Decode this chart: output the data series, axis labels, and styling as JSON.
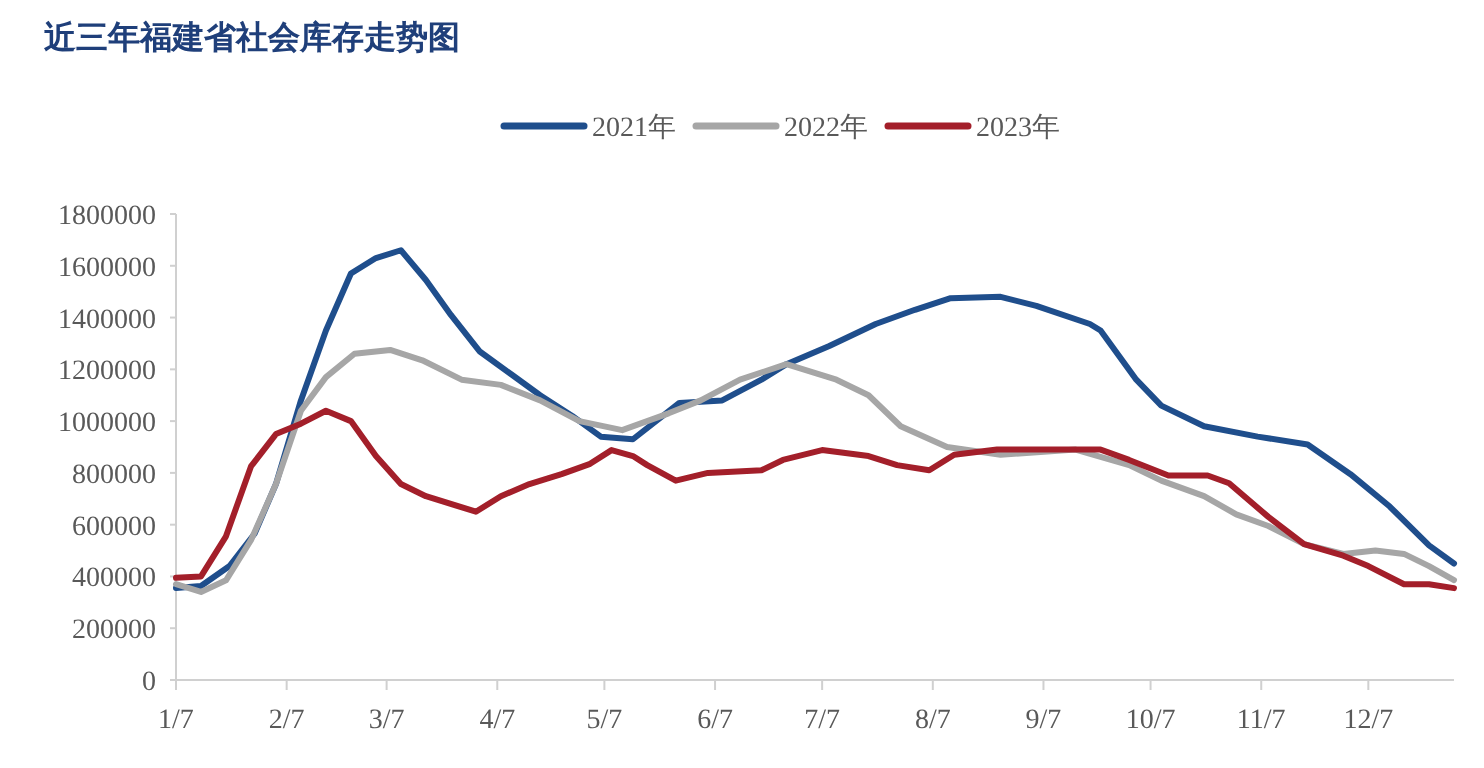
{
  "chart_data": {
    "type": "line",
    "title": "近三年福建省社会库存走势图",
    "xlim": [
      "--01-07",
      "--12-31"
    ],
    "xticks": [
      {
        "value": "--01-07",
        "label": "1/7"
      },
      {
        "value": "--02-07",
        "label": "2/7"
      },
      {
        "value": "--03-07",
        "label": "3/7"
      },
      {
        "value": "--04-07",
        "label": "4/7"
      },
      {
        "value": "--05-07",
        "label": "5/7"
      },
      {
        "value": "--06-07",
        "label": "6/7"
      },
      {
        "value": "--07-07",
        "label": "7/7"
      },
      {
        "value": "--08-07",
        "label": "8/7"
      },
      {
        "value": "--09-07",
        "label": "9/7"
      },
      {
        "value": "--10-07",
        "label": "10/7"
      },
      {
        "value": "--11-07",
        "label": "11/7"
      },
      {
        "value": "--12-07",
        "label": "12/7"
      }
    ],
    "ylim": [
      0,
      1800000
    ],
    "yticks": [
      0,
      200000,
      400000,
      600000,
      800000,
      1000000,
      1200000,
      1400000,
      1600000,
      1800000
    ],
    "legend": "top",
    "grid": false,
    "marker": "none",
    "line_style": "solid",
    "series": [
      {
        "name": "2021年",
        "color": "#1f4e8c",
        "x": [
          "--01-07",
          "--01-14",
          "--01-22",
          "--01-29",
          "--02-04",
          "--02-11",
          "--02-18",
          "--02-25",
          "--03-04",
          "--03-11",
          "--03-18",
          "--03-25",
          "--04-02",
          "--04-11",
          "--04-19",
          "--04-28",
          "--05-06",
          "--05-15",
          "--05-28",
          "--06-09",
          "--06-20",
          "--06-27",
          "--07-09",
          "--07-22",
          "--08-02",
          "--08-12",
          "--08-26",
          "--09-05",
          "--09-20",
          "--09-23",
          "--10-03",
          "--10-10",
          "--10-22",
          "--11-06",
          "--11-20",
          "--12-02",
          "--12-13",
          "--12-24",
          "--12-31"
        ],
        "values": [
          355000,
          363000,
          440000,
          565000,
          757000,
          1080000,
          1350000,
          1570000,
          1630000,
          1660000,
          1545000,
          1410000,
          1270000,
          1180000,
          1100000,
          1020000,
          940000,
          930000,
          1070000,
          1080000,
          1160000,
          1220000,
          1290000,
          1375000,
          1430000,
          1475000,
          1480000,
          1445000,
          1375000,
          1350000,
          1160000,
          1060000,
          980000,
          940000,
          910000,
          795000,
          670000,
          520000,
          450000
        ]
      },
      {
        "name": "2022年",
        "color": "#a6a6a6",
        "x": [
          "--01-07",
          "--01-14",
          "--01-21",
          "--01-28",
          "--02-04",
          "--02-11",
          "--02-18",
          "--02-26",
          "--03-08",
          "--03-17",
          "--03-28",
          "--04-08",
          "--04-19",
          "--04-30",
          "--05-12",
          "--05-25",
          "--06-03",
          "--06-14",
          "--06-27",
          "--07-11",
          "--07-20",
          "--07-29",
          "--08-11",
          "--08-26",
          "--09-16",
          "--10-01",
          "--10-10",
          "--10-22",
          "--10-31",
          "--11-09",
          "--11-19",
          "--11-30",
          "--12-09",
          "--12-17",
          "--12-24",
          "--12-31"
        ],
        "values": [
          370000,
          340000,
          385000,
          540000,
          757000,
          1040000,
          1170000,
          1260000,
          1275000,
          1235000,
          1160000,
          1140000,
          1080000,
          1000000,
          965000,
          1030000,
          1080000,
          1160000,
          1220000,
          1160000,
          1100000,
          980000,
          900000,
          870000,
          890000,
          830000,
          770000,
          710000,
          640000,
          595000,
          525000,
          487000,
          500000,
          487000,
          440000,
          386000
        ]
      },
      {
        "name": "2023年",
        "color": "#a31f2a",
        "x": [
          "--01-07",
          "--01-14",
          "--01-21",
          "--01-28",
          "--02-04",
          "--02-11",
          "--02-18",
          "--02-25",
          "--03-04",
          "--03-11",
          "--03-18",
          "--04-01",
          "--04-08",
          "--04-16",
          "--04-25",
          "--05-03",
          "--05-09",
          "--05-15",
          "--05-19",
          "--05-27",
          "--06-05",
          "--06-20",
          "--06-26",
          "--07-07",
          "--07-20",
          "--07-28",
          "--08-06",
          "--08-13",
          "--08-25",
          "--09-23",
          "--10-01",
          "--10-12",
          "--10-23",
          "--10-29",
          "--11-09",
          "--11-19",
          "--11-30",
          "--12-07",
          "--12-17",
          "--12-24",
          "--12-31"
        ],
        "values": [
          395000,
          400000,
          555000,
          825000,
          950000,
          990000,
          1040000,
          1000000,
          865000,
          757000,
          710000,
          650000,
          710000,
          757000,
          795000,
          835000,
          888000,
          865000,
          830000,
          770000,
          800000,
          810000,
          850000,
          888000,
          865000,
          830000,
          810000,
          870000,
          890000,
          890000,
          850000,
          790000,
          790000,
          760000,
          630000,
          525000,
          480000,
          440000,
          370000,
          370000,
          355000
        ]
      }
    ]
  }
}
